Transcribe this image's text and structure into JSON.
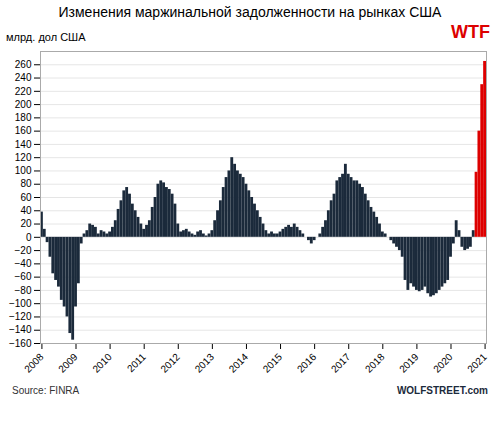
{
  "chart_data": {
    "type": "bar",
    "title": "Изменения маржинальной задолженности на рынках США",
    "ylabel": "млрд. дол США",
    "annotations": [
      {
        "text": "WTF",
        "color": "#dd0000"
      },
      {
        "text": "Source: FINRA"
      },
      {
        "text": "WOLFSTREET.com",
        "color": "#1b2a3b"
      }
    ],
    "categories": [
      "2008",
      null,
      null,
      null,
      null,
      null,
      null,
      null,
      null,
      null,
      null,
      null,
      "2009",
      null,
      null,
      null,
      null,
      null,
      null,
      null,
      null,
      null,
      null,
      null,
      "2010",
      null,
      null,
      null,
      null,
      null,
      null,
      null,
      null,
      null,
      null,
      null,
      "2011",
      null,
      null,
      null,
      null,
      null,
      null,
      null,
      null,
      null,
      null,
      null,
      "2012",
      null,
      null,
      null,
      null,
      null,
      null,
      null,
      null,
      null,
      null,
      null,
      "2013",
      null,
      null,
      null,
      null,
      null,
      null,
      null,
      null,
      null,
      null,
      null,
      "2014",
      null,
      null,
      null,
      null,
      null,
      null,
      null,
      null,
      null,
      null,
      null,
      "2015",
      null,
      null,
      null,
      null,
      null,
      null,
      null,
      null,
      null,
      null,
      null,
      "2016",
      null,
      null,
      null,
      null,
      null,
      null,
      null,
      null,
      null,
      null,
      null,
      "2017",
      null,
      null,
      null,
      null,
      null,
      null,
      null,
      null,
      null,
      null,
      null,
      "2018",
      null,
      null,
      null,
      null,
      null,
      null,
      null,
      null,
      null,
      null,
      null,
      "2019",
      null,
      null,
      null,
      null,
      null,
      null,
      null,
      null,
      null,
      null,
      null,
      "2020",
      null,
      null,
      null,
      null,
      null,
      null,
      null,
      null,
      null,
      null,
      null,
      "2021"
    ],
    "values": [
      38,
      12,
      -8,
      -30,
      -55,
      -65,
      -75,
      -95,
      -105,
      -120,
      -145,
      -155,
      -105,
      -70,
      -10,
      5,
      10,
      20,
      18,
      15,
      5,
      10,
      8,
      5,
      8,
      15,
      25,
      42,
      55,
      70,
      75,
      65,
      50,
      40,
      30,
      20,
      12,
      18,
      25,
      45,
      60,
      80,
      85,
      82,
      75,
      72,
      65,
      50,
      20,
      8,
      10,
      12,
      8,
      5,
      3,
      8,
      10,
      5,
      2,
      5,
      10,
      25,
      40,
      55,
      75,
      90,
      100,
      120,
      110,
      100,
      95,
      90,
      80,
      70,
      60,
      50,
      40,
      30,
      20,
      10,
      5,
      8,
      5,
      5,
      8,
      12,
      15,
      18,
      15,
      20,
      15,
      10,
      5,
      0,
      -5,
      -10,
      -5,
      0,
      5,
      15,
      25,
      40,
      55,
      65,
      85,
      90,
      95,
      110,
      95,
      90,
      85,
      85,
      80,
      75,
      65,
      55,
      45,
      38,
      30,
      20,
      8,
      5,
      0,
      -5,
      -10,
      -15,
      -20,
      -30,
      -65,
      -80,
      -70,
      -75,
      -80,
      -82,
      -80,
      -75,
      -85,
      -90,
      -88,
      -85,
      -80,
      -75,
      -70,
      -65,
      -30,
      -10,
      25,
      10,
      -15,
      -20,
      -18,
      -15,
      10,
      98,
      160,
      230,
      265
    ],
    "colors": [
      "#1b2a3b",
      "#1b2a3b",
      "#1b2a3b",
      "#1b2a3b",
      "#1b2a3b",
      "#1b2a3b",
      "#1b2a3b",
      "#1b2a3b",
      "#1b2a3b",
      "#1b2a3b",
      "#1b2a3b",
      "#1b2a3b",
      "#1b2a3b",
      "#1b2a3b",
      "#1b2a3b",
      "#1b2a3b",
      "#1b2a3b",
      "#1b2a3b",
      "#1b2a3b",
      "#1b2a3b",
      "#1b2a3b",
      "#1b2a3b",
      "#1b2a3b",
      "#1b2a3b",
      "#1b2a3b",
      "#1b2a3b",
      "#1b2a3b",
      "#1b2a3b",
      "#1b2a3b",
      "#1b2a3b",
      "#1b2a3b",
      "#1b2a3b",
      "#1b2a3b",
      "#1b2a3b",
      "#1b2a3b",
      "#1b2a3b",
      "#1b2a3b",
      "#1b2a3b",
      "#1b2a3b",
      "#1b2a3b",
      "#1b2a3b",
      "#1b2a3b",
      "#1b2a3b",
      "#1b2a3b",
      "#1b2a3b",
      "#1b2a3b",
      "#1b2a3b",
      "#1b2a3b",
      "#1b2a3b",
      "#1b2a3b",
      "#1b2a3b",
      "#1b2a3b",
      "#1b2a3b",
      "#1b2a3b",
      "#1b2a3b",
      "#1b2a3b",
      "#1b2a3b",
      "#1b2a3b",
      "#1b2a3b",
      "#1b2a3b",
      "#1b2a3b",
      "#1b2a3b",
      "#1b2a3b",
      "#1b2a3b",
      "#1b2a3b",
      "#1b2a3b",
      "#1b2a3b",
      "#1b2a3b",
      "#1b2a3b",
      "#1b2a3b",
      "#1b2a3b",
      "#1b2a3b",
      "#1b2a3b",
      "#1b2a3b",
      "#1b2a3b",
      "#1b2a3b",
      "#1b2a3b",
      "#1b2a3b",
      "#1b2a3b",
      "#1b2a3b",
      "#1b2a3b",
      "#1b2a3b",
      "#1b2a3b",
      "#1b2a3b",
      "#1b2a3b",
      "#1b2a3b",
      "#1b2a3b",
      "#1b2a3b",
      "#1b2a3b",
      "#1b2a3b",
      "#1b2a3b",
      "#1b2a3b",
      "#1b2a3b",
      "#1b2a3b",
      "#1b2a3b",
      "#1b2a3b",
      "#1b2a3b",
      "#1b2a3b",
      "#1b2a3b",
      "#1b2a3b",
      "#1b2a3b",
      "#1b2a3b",
      "#1b2a3b",
      "#1b2a3b",
      "#1b2a3b",
      "#1b2a3b",
      "#1b2a3b",
      "#1b2a3b",
      "#1b2a3b",
      "#1b2a3b",
      "#1b2a3b",
      "#1b2a3b",
      "#1b2a3b",
      "#1b2a3b",
      "#1b2a3b",
      "#1b2a3b",
      "#1b2a3b",
      "#1b2a3b",
      "#1b2a3b",
      "#1b2a3b",
      "#1b2a3b",
      "#1b2a3b",
      "#1b2a3b",
      "#1b2a3b",
      "#1b2a3b",
      "#1b2a3b",
      "#1b2a3b",
      "#1b2a3b",
      "#1b2a3b",
      "#1b2a3b",
      "#1b2a3b",
      "#1b2a3b",
      "#1b2a3b",
      "#1b2a3b",
      "#1b2a3b",
      "#1b2a3b",
      "#1b2a3b",
      "#1b2a3b",
      "#1b2a3b",
      "#1b2a3b",
      "#1b2a3b",
      "#1b2a3b",
      "#1b2a3b",
      "#1b2a3b",
      "#1b2a3b",
      "#1b2a3b",
      "#1b2a3b",
      "#1b2a3b",
      "#1b2a3b",
      "#1b2a3b",
      "#1b2a3b",
      "#1b2a3b",
      "#1b2a3b",
      "#dd0000",
      "#dd0000",
      "#dd0000",
      "#dd0000"
    ],
    "ylim": [
      -160,
      280
    ],
    "yticks": [
      -160,
      -140,
      -120,
      -100,
      -80,
      -60,
      -40,
      -20,
      0,
      20,
      40,
      60,
      80,
      100,
      120,
      140,
      160,
      180,
      200,
      220,
      240,
      260
    ],
    "grid": true
  }
}
